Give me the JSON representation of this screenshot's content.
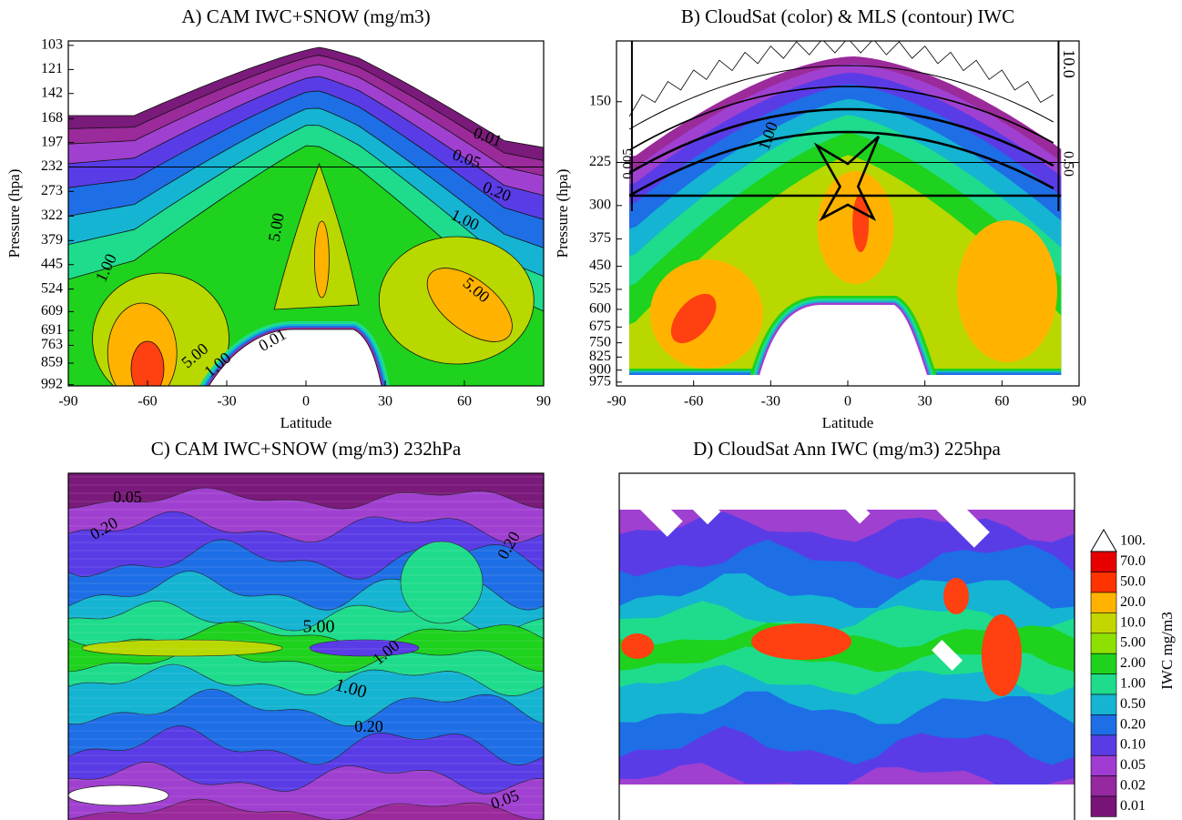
{
  "chart_data": [
    {
      "type": "contour",
      "title": "A) CAM IWC+SNOW (mg/m3)",
      "x_label": "Latitude",
      "y_label": "Pressure (hpa)",
      "xlim": [
        -90,
        90
      ],
      "xticks": [
        -90,
        -60,
        -30,
        0,
        30,
        60,
        90
      ],
      "ylim": [
        1000,
        100
      ],
      "y_log": true,
      "yticks": [
        103,
        121,
        142,
        168,
        197,
        232,
        273,
        322,
        379,
        445,
        524,
        609,
        691,
        763,
        859,
        992
      ],
      "reference_line": 232,
      "contour_labels": [
        "0.01",
        "0.05",
        "0.20",
        "1.00",
        "5.00",
        "1.00",
        "5.00",
        "5.00",
        "1.00",
        "0.01"
      ]
    },
    {
      "type": "contour",
      "title": "B) CloudSat (color) & MLS (contour) IWC",
      "x_label": "Latitude",
      "y_label": "Pressure (hpa)",
      "xlim": [
        -90,
        90
      ],
      "xticks": [
        -90,
        -60,
        -30,
        0,
        30,
        60,
        90
      ],
      "ylim": [
        1000,
        100
      ],
      "y_log": true,
      "yticks": [
        150,
        225,
        300,
        375,
        450,
        525,
        600,
        675,
        750,
        825,
        900,
        975
      ],
      "reference_line": 225,
      "contour_labels": [
        "1.00",
        "0.005",
        "10.0",
        "0.50"
      ]
    },
    {
      "type": "map",
      "title": "C) CAM IWC+SNOW (mg/m3)  232hPa",
      "contour_labels": [
        "0.05",
        "0.20",
        "0.20",
        "5.00",
        "1.00",
        "1.00",
        "0.20",
        "0.05"
      ]
    },
    {
      "type": "map",
      "title": "D) CloudSat Ann IWC (mg/m3)  225hpa",
      "colorbar": {
        "label": "IWC mg/m3",
        "levels": [
          {
            "value": 100,
            "label": "100."
          },
          {
            "value": 70,
            "label": "70.0"
          },
          {
            "value": 50,
            "label": "50.0"
          },
          {
            "value": 20,
            "label": "20.0"
          },
          {
            "value": 10,
            "label": "10.0"
          },
          {
            "value": 5,
            "label": "5.00"
          },
          {
            "value": 2,
            "label": "2.00"
          },
          {
            "value": 1,
            "label": "1.00"
          },
          {
            "value": 0.5,
            "label": "0.50"
          },
          {
            "value": 0.2,
            "label": "0.20"
          },
          {
            "value": 0.1,
            "label": "0.10"
          },
          0.05,
          0.02,
          0.01
        ],
        "colors": [
          "#ffffff",
          "#e60000",
          "#ff3300",
          "#ffb300",
          "#c4d600",
          "#8ee000",
          "#1ed21e",
          "#1edc8c",
          "#14b4d2",
          "#1e6ee6",
          "#5a3ce6",
          "#a03cd2",
          "#9628a0",
          "#781478"
        ]
      }
    }
  ]
}
